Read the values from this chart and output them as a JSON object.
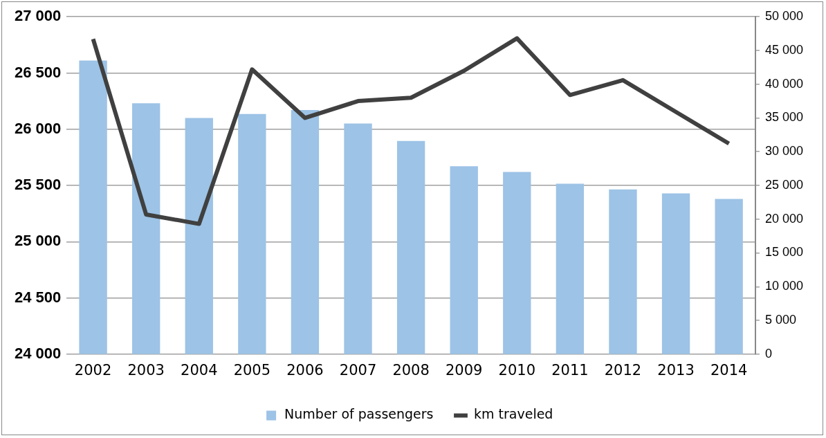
{
  "chart_data": {
    "type": "bar",
    "categories": [
      "2002",
      "2003",
      "2004",
      "2005",
      "2006",
      "2007",
      "2008",
      "2009",
      "2010",
      "2011",
      "2012",
      "2013",
      "2014"
    ],
    "series": [
      {
        "name": "Number of passengers",
        "color": "#9dc3e6",
        "values": [
          26610,
          26230,
          26100,
          26135,
          26170,
          26050,
          25895,
          25670,
          25620,
          25515,
          25465,
          25430,
          25380
        ]
      },
      {
        "name": "km traveled",
        "type": "line",
        "axis": "y2",
        "color": "#404040",
        "values": [
          46700,
          20700,
          19300,
          42200,
          35000,
          37500,
          38000,
          42000,
          46800,
          38400,
          40600,
          35900,
          31200
        ]
      }
    ],
    "ylim": [
      24000,
      27000
    ],
    "yticks": [
      {
        "value": 24000,
        "label": "24 000"
      },
      {
        "value": 24500,
        "label": "24 500"
      },
      {
        "value": 25000,
        "label": "25 000"
      },
      {
        "value": 25500,
        "label": "25 500"
      },
      {
        "value": 26000,
        "label": "26 000"
      },
      {
        "value": 26500,
        "label": "26 500"
      },
      {
        "value": 27000,
        "label": "27 000"
      }
    ],
    "y2lim": [
      0,
      50000
    ],
    "y2ticks": [
      0,
      {
        "value": 5000,
        "label": "5 000"
      },
      {
        "value": 10000,
        "label": "10 000"
      },
      {
        "value": 15000,
        "label": "15 000"
      },
      {
        "value": 20000,
        "label": "20 000"
      },
      {
        "value": 25000,
        "label": "25 000"
      },
      {
        "value": 30000,
        "label": "30 000"
      },
      {
        "value": 35000,
        "label": "35 000"
      },
      {
        "value": 40000,
        "label": "40 000"
      },
      {
        "value": 45000,
        "label": "45 000"
      },
      {
        "value": 50000,
        "label": "50 000"
      }
    ],
    "grid": "y",
    "legend": "bottom",
    "marker": "none",
    "line_style": "solid"
  }
}
